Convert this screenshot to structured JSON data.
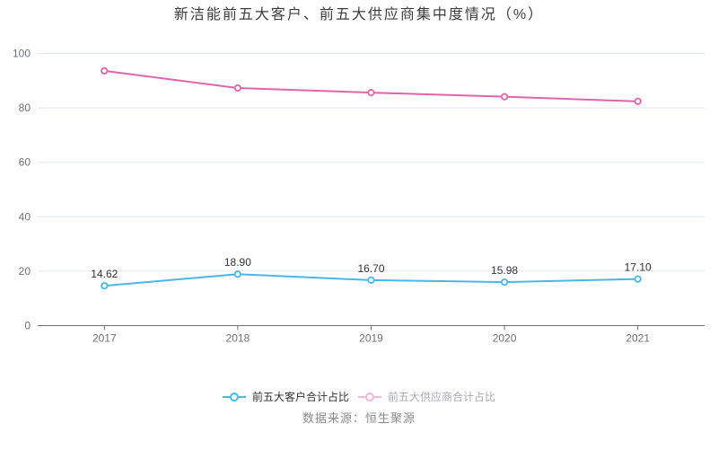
{
  "title": "新洁能前五大客户、前五大供应商集中度情况（%）",
  "source": "数据来源：恒生聚源",
  "colors": {
    "background": "#ffffff",
    "grid": "#e0e6f1",
    "axis_line": "#6e7079",
    "axis_label": "#6e7079",
    "point_label": "#333333",
    "title": "#3c3c3c",
    "source_text": "#8a8a8a",
    "customer_series": "#4cb5ea",
    "supplier_series": "#e064a8",
    "supplier_legend_faded": "#f2b7d8"
  },
  "chart_data": {
    "type": "line",
    "title": "新洁能前五大客户、前五大供应商集中度情况（%）",
    "categories": [
      "2017",
      "2018",
      "2019",
      "2020",
      "2021"
    ],
    "series": [
      {
        "name": "前五大客户合计占比",
        "color": "#4cb5ea",
        "values": [
          14.62,
          18.9,
          16.7,
          15.98,
          17.1
        ],
        "labels": [
          "14.62",
          "18.90",
          "16.70",
          "15.98",
          "17.10"
        ],
        "show_labels": true,
        "legend_marker_color": "#4cb5ea",
        "legend_text_color": "#333333"
      },
      {
        "name": "前五大供应商合计占比",
        "color": "#e064a8",
        "values": [
          93.6,
          87.3,
          85.6,
          84.1,
          82.4
        ],
        "labels": [],
        "show_labels": false,
        "legend_marker_color": "#f2b7d8",
        "legend_text_color": "#a6a9b0"
      }
    ],
    "xlabel": "",
    "ylabel": "",
    "ylim": [
      0,
      100
    ],
    "yticks": [
      0,
      20,
      40,
      60,
      80,
      100
    ],
    "grid": true,
    "legend_position": "bottom",
    "marker_style": "hollow-circle"
  }
}
